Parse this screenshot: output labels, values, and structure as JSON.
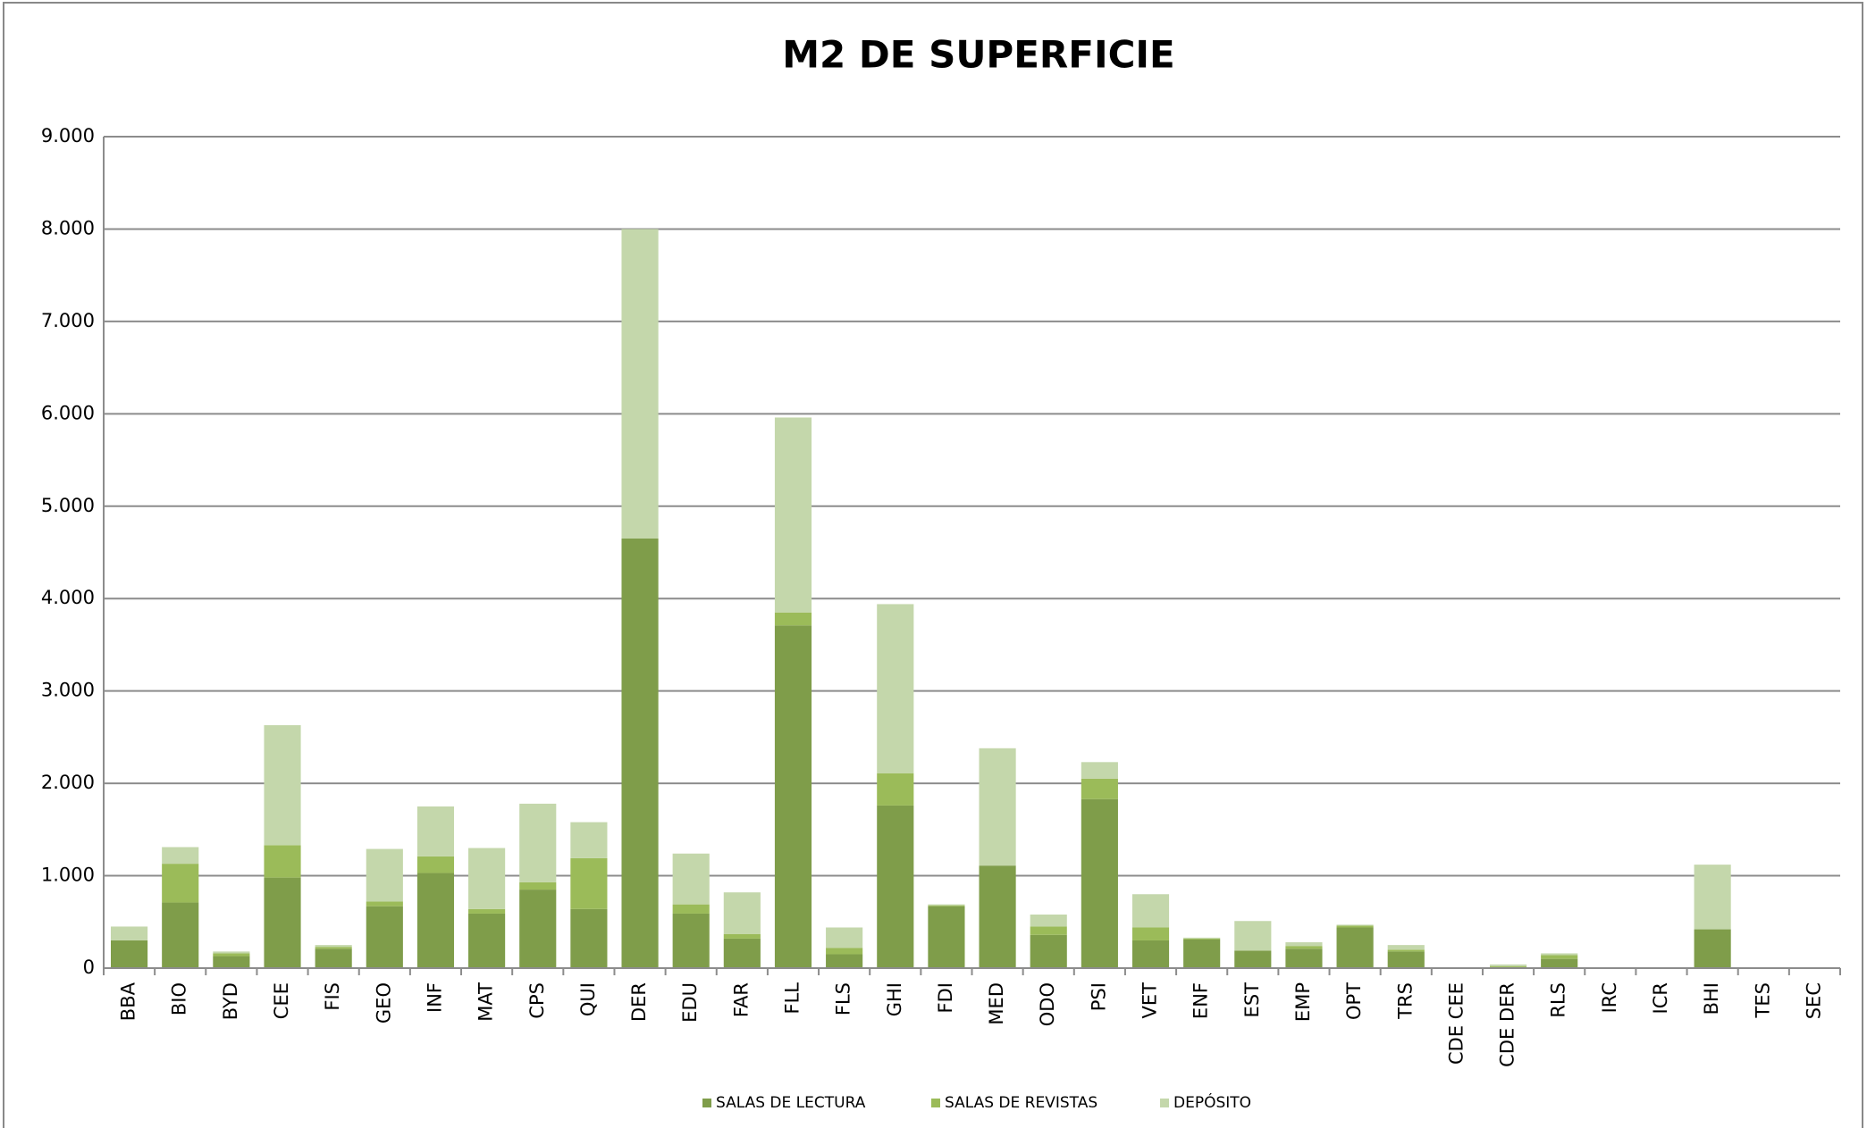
{
  "chart_data": {
    "type": "stacked_bar",
    "title": "M2 DE SUPERFICIE",
    "categories": [
      "BBA",
      "BIO",
      "BYD",
      "CEE",
      "FIS",
      "GEO",
      "INF",
      "MAT",
      "CPS",
      "QUI",
      "DER",
      "EDU",
      "FAR",
      "FLL",
      "FLS",
      "GHI",
      "FDI",
      "MED",
      "ODO",
      "PSI",
      "VET",
      "ENF",
      "EST",
      "EMP",
      "OPT",
      "TRS",
      "CDE CEE",
      "CDE DER",
      "RLS",
      "IRC",
      "ICR",
      "BHI",
      "TES",
      "SEC"
    ],
    "series": [
      {
        "name": "SALAS DE LECTURA",
        "color": "#7f9d4a",
        "values": [
          300,
          710,
          130,
          980,
          210,
          670,
          1030,
          590,
          850,
          640,
          4650,
          590,
          320,
          3710,
          150,
          1760,
          670,
          1110,
          360,
          1830,
          300,
          310,
          190,
          210,
          440,
          180,
          0,
          10,
          100,
          0,
          0,
          420,
          0,
          0
        ]
      },
      {
        "name": "SALAS DE REVISTAS",
        "color": "#9bbb59",
        "values": [
          0,
          420,
          30,
          350,
          20,
          50,
          180,
          50,
          80,
          550,
          0,
          100,
          50,
          140,
          70,
          350,
          10,
          0,
          90,
          220,
          140,
          10,
          0,
          30,
          20,
          20,
          0,
          10,
          40,
          0,
          0,
          0,
          0,
          0
        ]
      },
      {
        "name": "DEPÓSITO",
        "color": "#c4d7ab",
        "values": [
          150,
          180,
          20,
          1300,
          20,
          570,
          540,
          660,
          850,
          390,
          3350,
          550,
          450,
          2110,
          220,
          1830,
          10,
          1270,
          130,
          180,
          360,
          10,
          320,
          40,
          10,
          50,
          0,
          20,
          20,
          0,
          0,
          700,
          0,
          0
        ]
      }
    ],
    "ylim": [
      0,
      9000
    ],
    "yticks": [
      0,
      {
        "value": 1000,
        "label": "1.000"
      },
      {
        "value": 2000,
        "label": "2.000"
      },
      {
        "value": 3000,
        "label": "3.000"
      },
      {
        "value": 4000,
        "label": "4.000"
      },
      {
        "value": 5000,
        "label": "5.000"
      },
      {
        "value": 6000,
        "label": "6.000"
      },
      {
        "value": 7000,
        "label": "7.000"
      },
      {
        "value": 8000,
        "label": "8.000"
      },
      {
        "value": 9000,
        "label": "9.000"
      }
    ],
    "grid": true,
    "legend": "bottom"
  }
}
